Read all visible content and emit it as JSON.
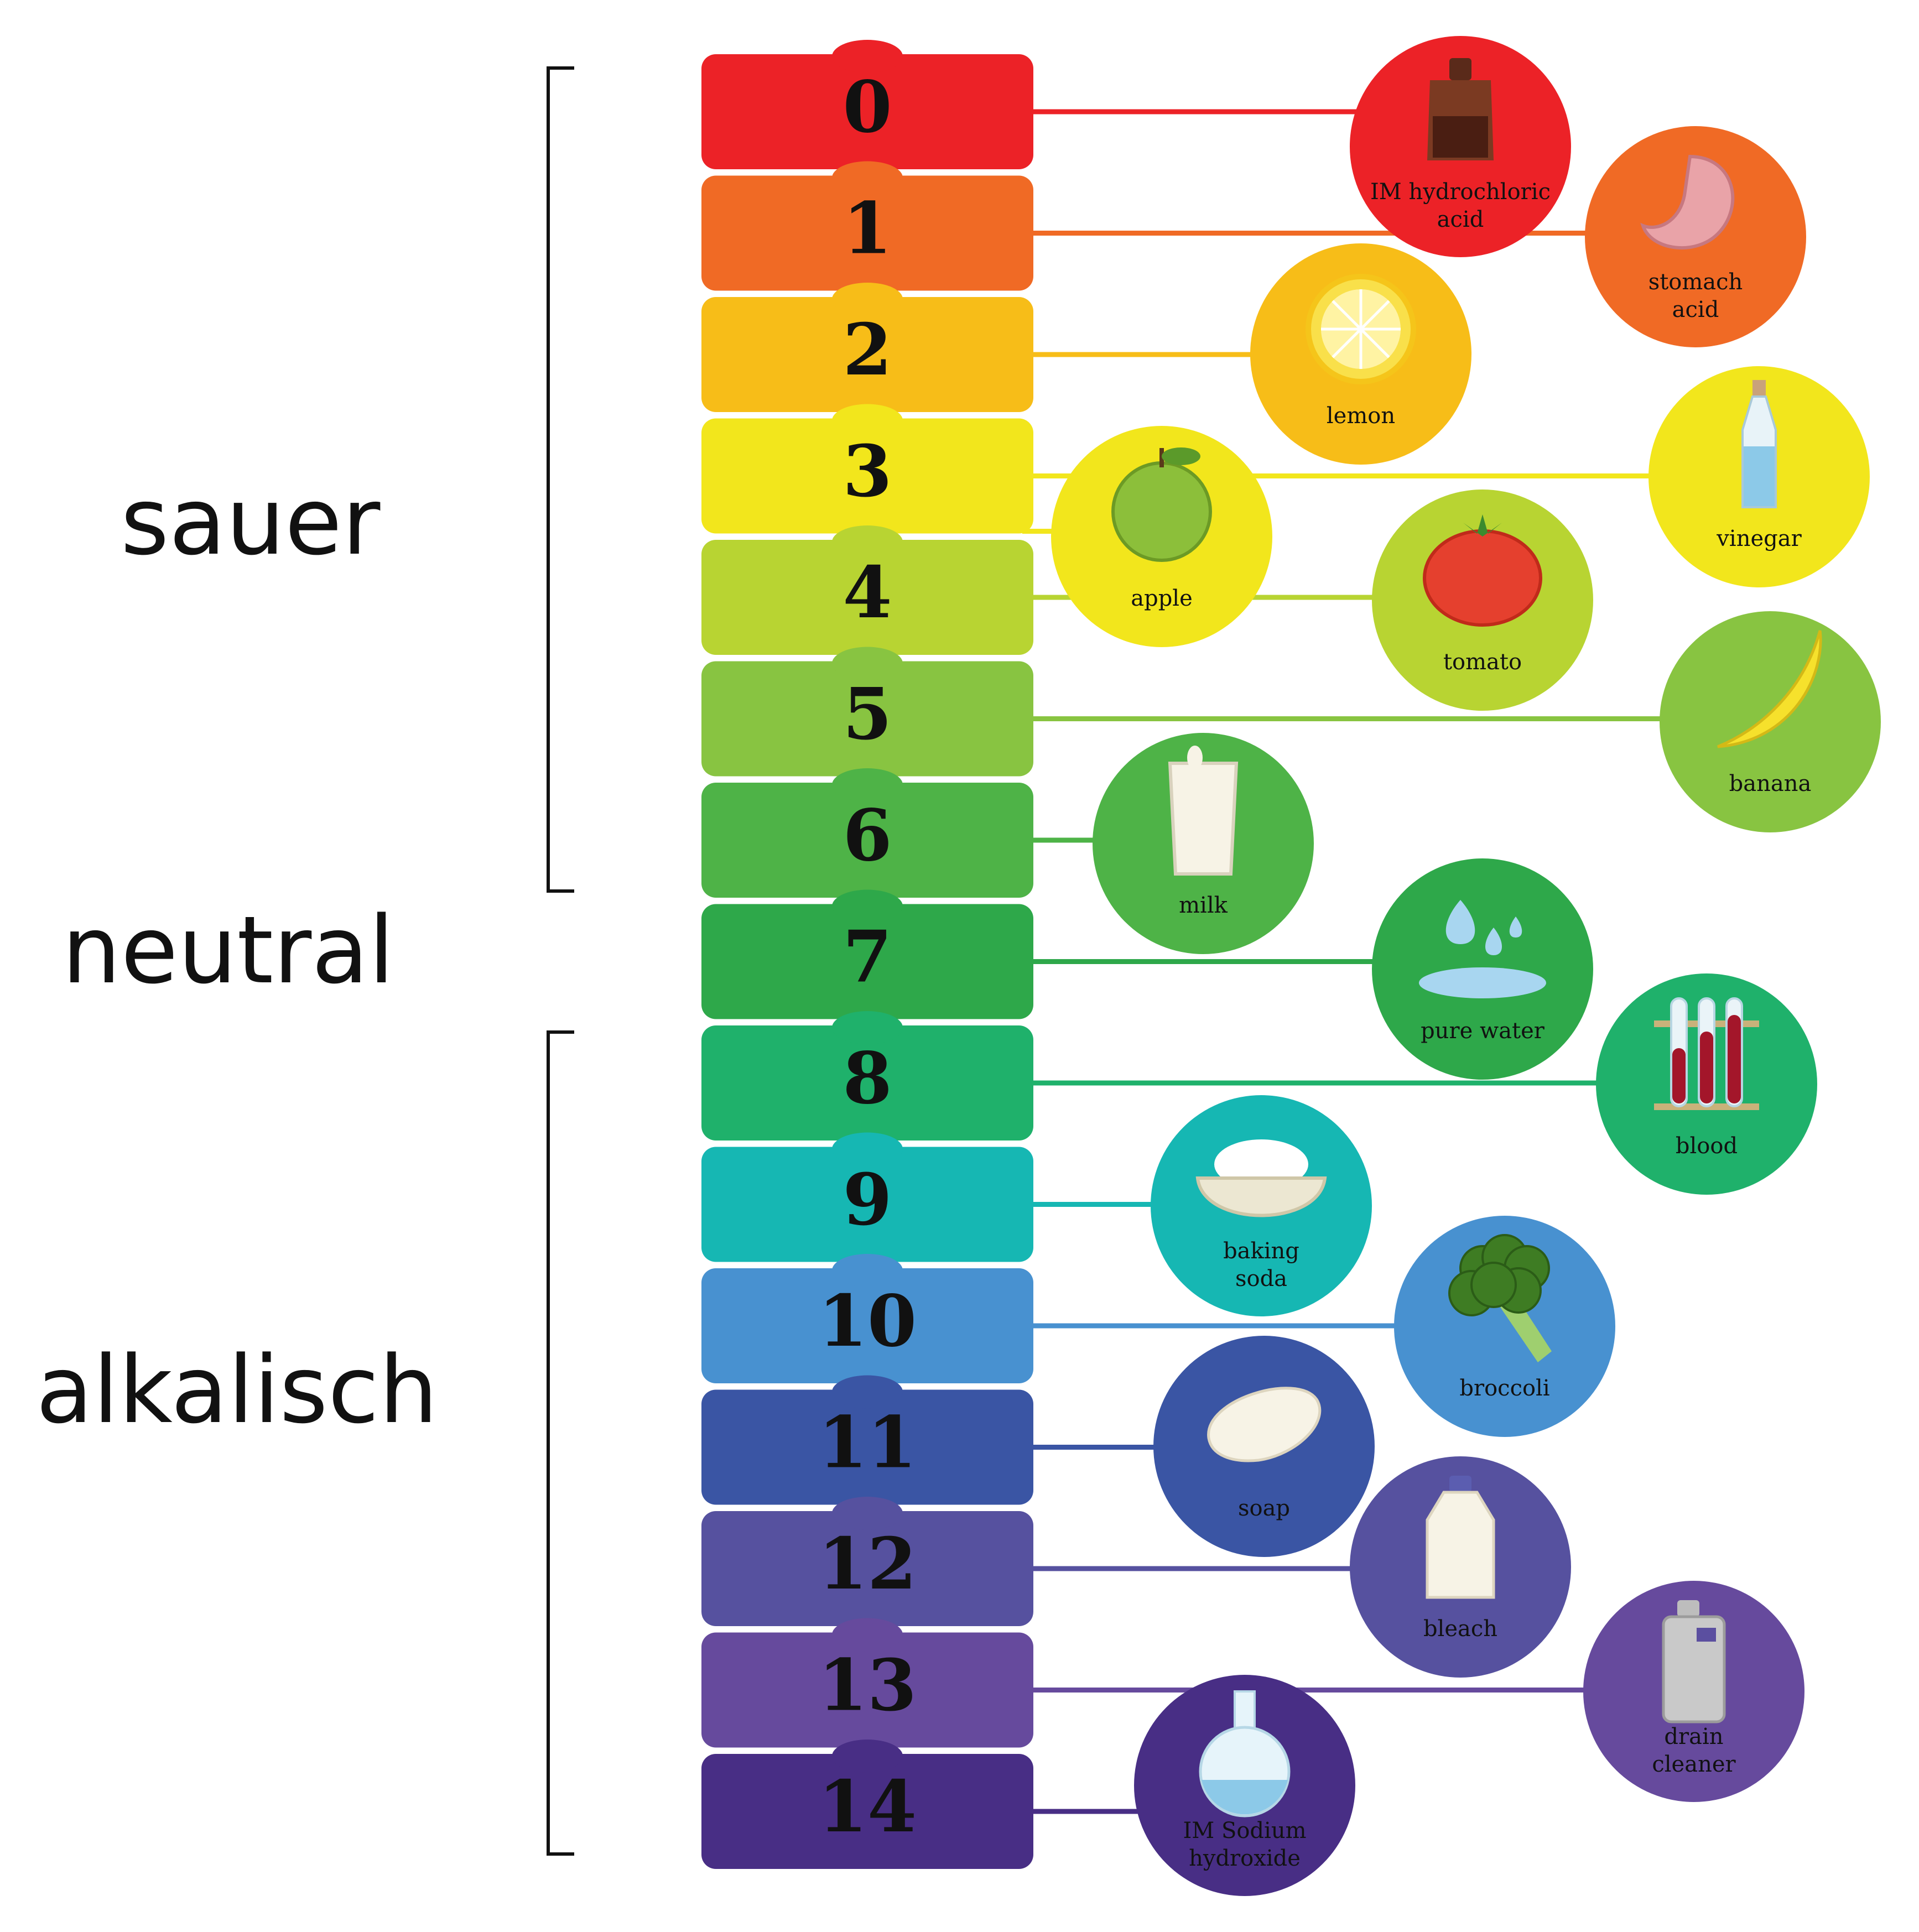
{
  "categories": {
    "acidic": "sauer",
    "neutral": "neutral",
    "alkaline": "alkalisch"
  },
  "scale": [
    {
      "value": "0",
      "color": "#ec2227"
    },
    {
      "value": "1",
      "color": "#f06a25"
    },
    {
      "value": "2",
      "color": "#f7bd18"
    },
    {
      "value": "3",
      "color": "#f2e61c"
    },
    {
      "value": "4",
      "color": "#b8d432"
    },
    {
      "value": "5",
      "color": "#88c441"
    },
    {
      "value": "6",
      "color": "#4eb347"
    },
    {
      "value": "7",
      "color": "#2ea84a"
    },
    {
      "value": "8",
      "color": "#1fb16b"
    },
    {
      "value": "9",
      "color": "#16b7b3"
    },
    {
      "value": "10",
      "color": "#4891d0"
    },
    {
      "value": "11",
      "color": "#3a55a4"
    },
    {
      "value": "12",
      "color": "#56519f"
    },
    {
      "value": "13",
      "color": "#664a9d"
    },
    {
      "value": "14",
      "color": "#482e85"
    }
  ],
  "substances": [
    {
      "ph": 0,
      "lines": [
        "IM hydrochloric",
        "acid"
      ],
      "icon": "acid-bottle-icon"
    },
    {
      "ph": 1,
      "lines": [
        "stomach",
        "acid"
      ],
      "icon": "stomach-icon"
    },
    {
      "ph": 2,
      "lines": [
        "lemon"
      ],
      "icon": "lemon-icon"
    },
    {
      "ph": 3,
      "lines": [
        "vinegar"
      ],
      "icon": "vinegar-bottle-icon"
    },
    {
      "ph": 3.5,
      "lines": [
        "apple"
      ],
      "icon": "apple-icon"
    },
    {
      "ph": 4,
      "lines": [
        "tomato"
      ],
      "icon": "tomato-icon"
    },
    {
      "ph": 5,
      "lines": [
        "banana"
      ],
      "icon": "banana-icon"
    },
    {
      "ph": 6,
      "lines": [
        "milk"
      ],
      "icon": "milk-glass-icon"
    },
    {
      "ph": 7,
      "lines": [
        "pure water"
      ],
      "icon": "water-drops-icon"
    },
    {
      "ph": 8,
      "lines": [
        "blood"
      ],
      "icon": "test-tubes-icon"
    },
    {
      "ph": 9,
      "lines": [
        "baking",
        "soda"
      ],
      "icon": "powder-bowl-icon"
    },
    {
      "ph": 10,
      "lines": [
        "broccoli"
      ],
      "icon": "broccoli-icon"
    },
    {
      "ph": 11,
      "lines": [
        "soap"
      ],
      "icon": "soap-bar-icon"
    },
    {
      "ph": 12,
      "lines": [
        "bleach"
      ],
      "icon": "bleach-jug-icon"
    },
    {
      "ph": 13,
      "lines": [
        "drain",
        "cleaner"
      ],
      "icon": "drain-cleaner-can-icon"
    },
    {
      "ph": 14,
      "lines": [
        "IM Sodium",
        "hydroxide"
      ],
      "icon": "flask-icon"
    }
  ]
}
